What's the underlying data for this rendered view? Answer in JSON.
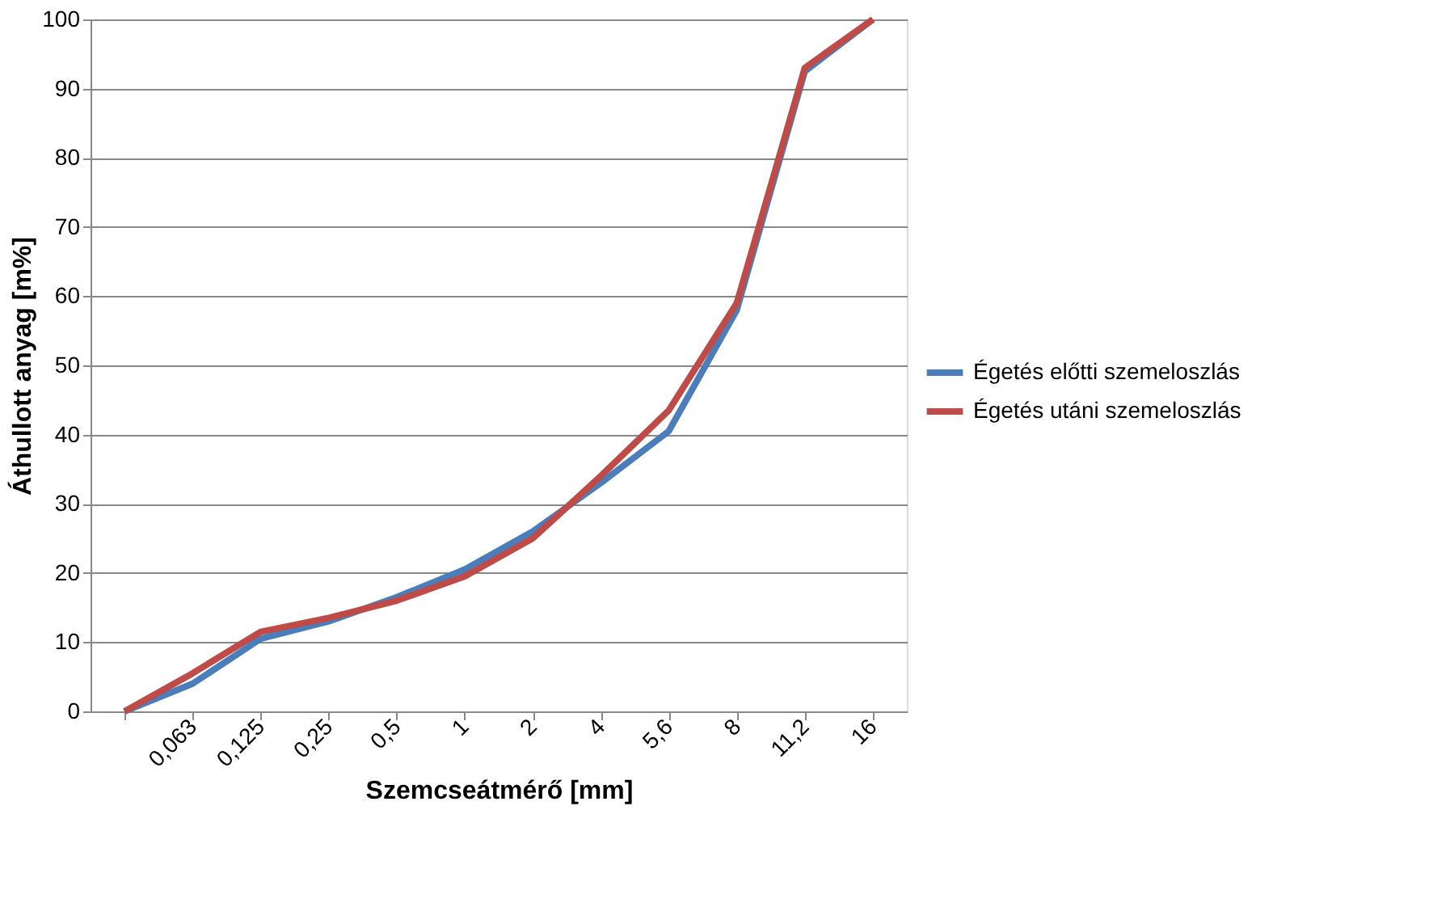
{
  "chart_data": {
    "type": "line",
    "xlabel": "Szemcseátmérő [mm]",
    "ylabel": "Áthullott anyag [m%]",
    "categories": [
      null,
      "0,063",
      "0,125",
      "0,25",
      "0,5",
      "1",
      "2",
      "4",
      "5,6",
      "8",
      "11,2",
      "16"
    ],
    "series": [
      {
        "name": "Égetés előtti szemeloszlás",
        "color": "#4a7ebb",
        "values": [
          0,
          4,
          10.5,
          13,
          16.5,
          20.5,
          26,
          33,
          40.5,
          58,
          92.5,
          100
        ]
      },
      {
        "name": "Égetés utáni szemeloszlás",
        "color": "#be4b48",
        "values": [
          0,
          5.5,
          11.5,
          13.5,
          16,
          19.5,
          25,
          34,
          43.5,
          59,
          93,
          100
        ]
      }
    ],
    "ylim": [
      0,
      100
    ],
    "yticks": [
      0,
      10,
      20,
      30,
      40,
      50,
      60,
      70,
      80,
      90,
      100
    ],
    "grid": "y",
    "legend": "right",
    "marker": "none",
    "line_style": "solid"
  }
}
